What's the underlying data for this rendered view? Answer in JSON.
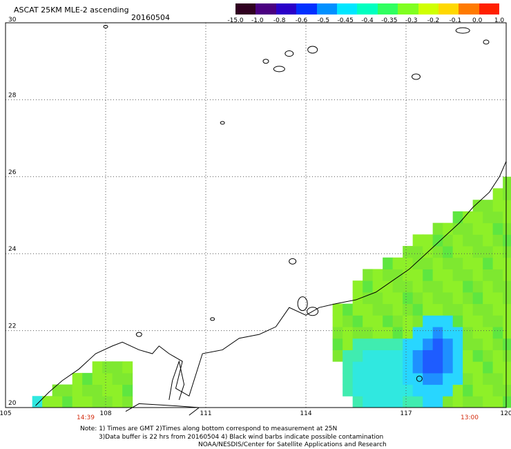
{
  "header": {
    "title": "ASCAT 25KM MLE-2 ascending",
    "date": "20160504"
  },
  "colorbar": {
    "labels": [
      "-15.0",
      "-1.0",
      "-0.8",
      "-0.6",
      "-0.5",
      "-0.45",
      "-0.4",
      "-0.35",
      "-0.3",
      "-0.2",
      "-0.1",
      "0.0",
      "1.0"
    ],
    "colors": [
      "#300020",
      "#4a0080",
      "#2a00c8",
      "#0030ff",
      "#0090ff",
      "#00e6ff",
      "#00ffc0",
      "#30ff60",
      "#80ff20",
      "#d0ff00",
      "#ffd800",
      "#ff7a00",
      "#ff2000"
    ]
  },
  "map": {
    "lat_labels": [
      "30",
      "28",
      "26",
      "24",
      "22",
      "20"
    ],
    "lon_labels": [
      "105",
      "108",
      "111",
      "114",
      "117",
      "120"
    ],
    "lat_range": [
      20,
      30
    ],
    "lon_range": [
      105,
      120
    ],
    "grid": "dotted"
  },
  "time_labels": {
    "left": "14:39",
    "right": "13:00"
  },
  "notes": {
    "line1": "Note: 1) Times are GMT 2)Times along bottom correspond to measurement at 25N",
    "line2": "3)Data buffer is 22 hrs from 20160504 4) Black wind barbs indicate possible contamination",
    "line3": "NOAA/NESDIS/Center for Satellite Applications and Research"
  },
  "colors": {
    "land_coast": "#000000",
    "time_label": "#d32a0c"
  }
}
